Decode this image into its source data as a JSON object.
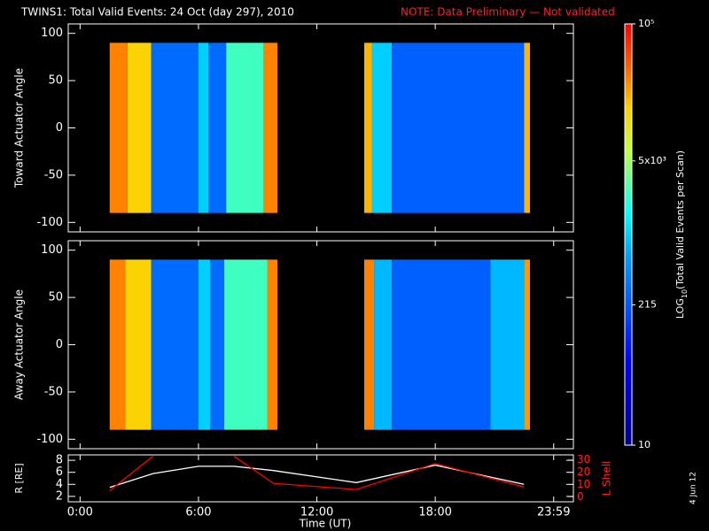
{
  "title": "TWINS1: Total Valid Events: 24 Oct (day 297), 2010",
  "note": "NOTE: Data Preliminary — Not validated",
  "stamp": "4 Jun 12",
  "xaxis": {
    "label": "Time (UT)",
    "xlim": [
      -0.6,
      25
    ],
    "xticks": [
      {
        "value": 0,
        "label": "0:00"
      },
      {
        "value": 6,
        "label": "6:00"
      },
      {
        "value": 12,
        "label": "12:00"
      },
      {
        "value": 18,
        "label": "18:00"
      },
      {
        "value": 24,
        "label": "23:59"
      }
    ]
  },
  "colorbar": {
    "label": [
      "LOG",
      "10",
      "(Total Valid Events per Scan)"
    ],
    "log": true,
    "lim": [
      10,
      100000
    ],
    "ticks": [
      10,
      215,
      {
        "value": 5000,
        "label": "5x10³"
      },
      {
        "value": 100000,
        "label": "10⁵"
      }
    ],
    "colorscale": [
      [
        0,
        "#00008c"
      ],
      [
        0.2,
        "#0000ff"
      ],
      [
        0.45,
        "#00a0ff"
      ],
      [
        0.55,
        "#00ffff"
      ],
      [
        0.7,
        "#c0ff40"
      ],
      [
        0.8,
        "#ffd000"
      ],
      [
        0.9,
        "#ff6000"
      ],
      [
        1,
        "#ff0000"
      ]
    ]
  },
  "chart_data": [
    {
      "type": "heatmap",
      "ylabel": "Toward Actuator Angle",
      "ylim": [
        -110,
        110
      ],
      "yticks": [
        100,
        50,
        0,
        -50,
        -100
      ],
      "bands": [
        {
          "start": 1.5,
          "end": 2.4,
          "value": 30000
        },
        {
          "start": 2.4,
          "end": 3.6,
          "value": 15000
        },
        {
          "start": 3.6,
          "end": 6.0,
          "value": 300
        },
        {
          "start": 6.0,
          "end": 6.5,
          "value": 1000
        },
        {
          "start": 6.5,
          "end": 7.4,
          "value": 300
        },
        {
          "start": 7.4,
          "end": 9.3,
          "value": 2500
        },
        {
          "start": 9.3,
          "end": 10.0,
          "value": 30000
        },
        {
          "start": 14.4,
          "end": 14.8,
          "value": 20000
        },
        {
          "start": 14.8,
          "end": 15.8,
          "value": 1000
        },
        {
          "start": 15.8,
          "end": 22.5,
          "value": 250
        },
        {
          "start": 22.5,
          "end": 22.8,
          "value": 20000
        }
      ]
    },
    {
      "type": "heatmap",
      "ylabel": "Away Actuator Angle",
      "ylim": [
        -110,
        110
      ],
      "yticks": [
        100,
        50,
        0,
        -50,
        -100
      ],
      "bands": [
        {
          "start": 1.5,
          "end": 2.3,
          "value": 30000
        },
        {
          "start": 2.3,
          "end": 3.6,
          "value": 15000
        },
        {
          "start": 3.6,
          "end": 6.0,
          "value": 300
        },
        {
          "start": 6.0,
          "end": 6.6,
          "value": 1000
        },
        {
          "start": 6.6,
          "end": 7.3,
          "value": 300
        },
        {
          "start": 7.3,
          "end": 9.5,
          "value": 2500
        },
        {
          "start": 9.5,
          "end": 10.0,
          "value": 30000
        },
        {
          "start": 14.4,
          "end": 14.9,
          "value": 30000
        },
        {
          "start": 14.9,
          "end": 15.8,
          "value": 800
        },
        {
          "start": 15.8,
          "end": 20.8,
          "value": 250
        },
        {
          "start": 20.8,
          "end": 22.5,
          "value": 800
        },
        {
          "start": 22.5,
          "end": 22.8,
          "value": 25000
        }
      ]
    },
    {
      "type": "line",
      "ylabel": "R [RE]",
      "y2label": "L Shell",
      "ylim": [
        1.1,
        8.9
      ],
      "yticks": [
        2,
        4,
        6,
        8
      ],
      "y2lim": [
        -4,
        34
      ],
      "y2ticks": [
        0,
        10,
        20,
        30
      ],
      "x": [
        1.5,
        3.7,
        6,
        7.8,
        9.8,
        14,
        18,
        22.5
      ],
      "series": [
        {
          "name": "R",
          "color": "#ffffff",
          "values": [
            3.5,
            5.8,
            7,
            7,
            6.3,
            4.3,
            7.2,
            4
          ]
        },
        {
          "name": "L Shell",
          "color": "#ff0000",
          "axis": "y2",
          "values": [
            5,
            33,
            null,
            33,
            11,
            6,
            27,
            8
          ]
        }
      ]
    }
  ]
}
